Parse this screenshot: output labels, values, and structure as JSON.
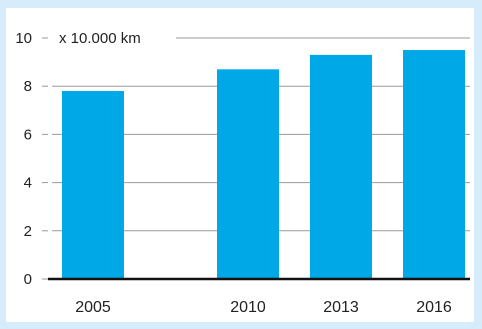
{
  "chart_data": {
    "type": "bar",
    "categories": [
      "2005",
      "2010",
      "2013",
      "2016"
    ],
    "values": [
      7.8,
      8.7,
      9.3,
      9.5
    ],
    "unit_label": "x 10.000 km",
    "ylim": [
      0,
      10
    ],
    "yticks": [
      "0",
      "2",
      "4",
      "6",
      "8",
      "10"
    ],
    "grid": "horizontal",
    "colors": {
      "bar": "#00a8e8",
      "grid": "#9a9a9a",
      "axis": "#111111",
      "background": "#d6ecfb"
    }
  }
}
